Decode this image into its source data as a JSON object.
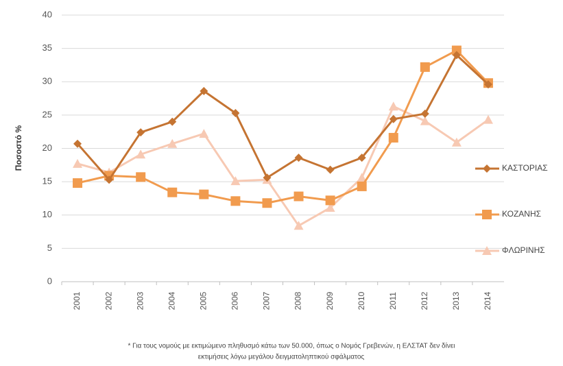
{
  "chart_data": {
    "type": "line",
    "y_label": "Ποσοστό %",
    "categories": [
      "2001",
      "2002",
      "2003",
      "2004",
      "2005",
      "2006",
      "2007",
      "2008",
      "2009",
      "2010",
      "2011",
      "2012",
      "2013",
      "2014"
    ],
    "series": [
      {
        "name": "ΚΑΣΤΟΡΙΑΣ",
        "color": "#c57432",
        "marker": "diamond",
        "values": [
          20.7,
          15.3,
          22.4,
          24.0,
          28.6,
          25.3,
          15.6,
          18.6,
          16.8,
          18.6,
          24.4,
          25.2,
          34.0,
          29.6
        ]
      },
      {
        "name": "ΚΟΖΑΝΗΣ",
        "color": "#f19b4e",
        "marker": "square",
        "values": [
          14.8,
          15.9,
          15.7,
          13.4,
          13.1,
          12.1,
          11.8,
          12.8,
          12.2,
          14.3,
          21.6,
          32.2,
          34.7,
          29.8
        ]
      },
      {
        "name": "ΦΛΩΡΙΝΗΣ",
        "color": "#f7c9b3",
        "marker": "triangle",
        "values": [
          17.7,
          16.4,
          19.1,
          20.7,
          22.2,
          15.1,
          15.3,
          8.4,
          11.1,
          15.6,
          26.3,
          24.1,
          20.9,
          24.3
        ]
      }
    ],
    "ylim": [
      0,
      40
    ],
    "yticks": [
      0,
      5,
      10,
      15,
      20,
      25,
      30,
      35,
      40
    ],
    "grid": true,
    "legend": "right",
    "footnote": [
      "* Για τους  νομούς με  εκτιμώμενο πληθυσμό κάτω των 50.000, όπως ο Νομός Γρεβενών, η ΕΛΣΤΑΤ δεν δίνει",
      "εκτιμήσεις  λόγω μεγάλου δειγματοληπτικού σφάλματος"
    ]
  }
}
